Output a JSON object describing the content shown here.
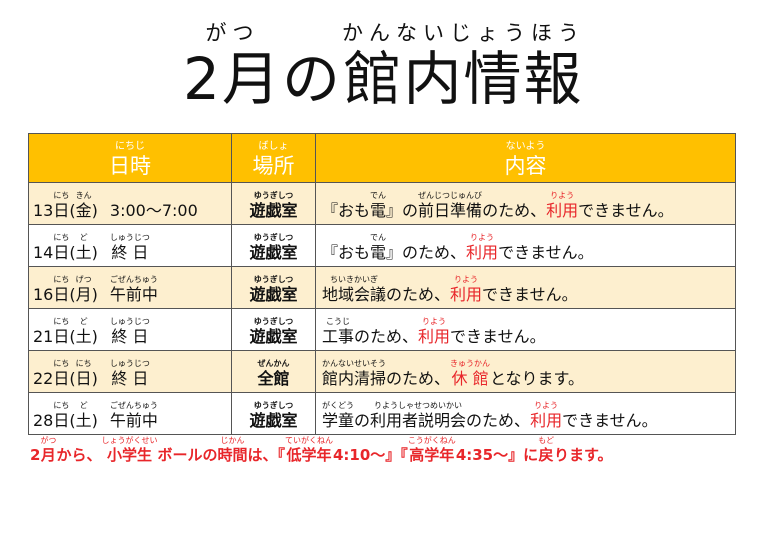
{
  "title": [
    {
      "t": "2月",
      "r": "がつ"
    },
    {
      "t": "の"
    },
    {
      "t": "館内情報",
      "r": "かんないじょうほう"
    }
  ],
  "header": {
    "date": [
      {
        "t": "日時",
        "r": "にちじ"
      }
    ],
    "place": [
      {
        "t": "場所",
        "r": "ばしょ"
      }
    ],
    "content": [
      {
        "t": "内容",
        "r": "ないよう"
      }
    ]
  },
  "rows": [
    {
      "date": [
        {
          "t": "13"
        },
        {
          "t": "日",
          "r": "にち"
        },
        {
          "t": "("
        },
        {
          "t": "金",
          "r": "きん"
        },
        {
          "t": ")"
        }
      ],
      "time": [
        {
          "t": "3:00～7:00"
        }
      ],
      "place": [
        {
          "t": "遊戯室",
          "r": "ゆうぎしつ"
        }
      ],
      "content": [
        {
          "t": "『おも"
        },
        {
          "t": "電",
          "r": "でん"
        },
        {
          "t": "』の"
        },
        {
          "t": "前日準備",
          "r": "ぜんじつじゅんび"
        },
        {
          "t": "のため、"
        },
        {
          "t": "利用",
          "r": "りよう",
          "red": true
        },
        {
          "t": "できません。"
        }
      ]
    },
    {
      "date": [
        {
          "t": "14"
        },
        {
          "t": "日",
          "r": "にち"
        },
        {
          "t": "("
        },
        {
          "t": "土",
          "r": "ど"
        },
        {
          "t": ")"
        }
      ],
      "time": [
        {
          "t": "終 日",
          "r": "しゅうじつ"
        }
      ],
      "place": [
        {
          "t": "遊戯室",
          "r": "ゆうぎしつ"
        }
      ],
      "content": [
        {
          "t": "『おも"
        },
        {
          "t": "電",
          "r": "でん"
        },
        {
          "t": "』のため、"
        },
        {
          "t": "利用",
          "r": "りよう",
          "red": true
        },
        {
          "t": "できません。"
        }
      ]
    },
    {
      "date": [
        {
          "t": "16"
        },
        {
          "t": "日",
          "r": "にち"
        },
        {
          "t": "("
        },
        {
          "t": "月",
          "r": "げつ"
        },
        {
          "t": ")"
        }
      ],
      "time": [
        {
          "t": "午前中",
          "r": "ごぜんちゅう"
        }
      ],
      "place": [
        {
          "t": "遊戯室",
          "r": "ゆうぎしつ"
        }
      ],
      "content": [
        {
          "t": "地域会議",
          "r": "ちいきかいぎ"
        },
        {
          "t": "のため、"
        },
        {
          "t": "利用",
          "r": "りよう",
          "red": true
        },
        {
          "t": "できません。"
        }
      ]
    },
    {
      "date": [
        {
          "t": "21"
        },
        {
          "t": "日",
          "r": "にち"
        },
        {
          "t": "("
        },
        {
          "t": "土",
          "r": "ど"
        },
        {
          "t": ")"
        }
      ],
      "time": [
        {
          "t": "終 日",
          "r": "しゅうじつ"
        }
      ],
      "place": [
        {
          "t": "遊戯室",
          "r": "ゆうぎしつ"
        }
      ],
      "content": [
        {
          "t": "工事",
          "r": "こうじ"
        },
        {
          "t": "のため、"
        },
        {
          "t": "利用",
          "r": "りよう",
          "red": true
        },
        {
          "t": "できません。"
        }
      ]
    },
    {
      "date": [
        {
          "t": "22"
        },
        {
          "t": "日",
          "r": "にち"
        },
        {
          "t": "("
        },
        {
          "t": "日",
          "r": "にち"
        },
        {
          "t": ")"
        }
      ],
      "time": [
        {
          "t": "終 日",
          "r": "しゅうじつ"
        }
      ],
      "place": [
        {
          "t": "全館",
          "r": "ぜんかん"
        }
      ],
      "content": [
        {
          "t": "館内清掃",
          "r": "かんないせいそう"
        },
        {
          "t": "のため、"
        },
        {
          "t": "休 館",
          "r": "きゅうかん",
          "red": true
        },
        {
          "t": "となります。"
        }
      ]
    },
    {
      "date": [
        {
          "t": "28"
        },
        {
          "t": "日",
          "r": "にち"
        },
        {
          "t": "("
        },
        {
          "t": "土",
          "r": "ど"
        },
        {
          "t": ")"
        }
      ],
      "time": [
        {
          "t": "午前中",
          "r": "ごぜんちゅう"
        }
      ],
      "place": [
        {
          "t": "遊戯室",
          "r": "ゆうぎしつ"
        }
      ],
      "content": [
        {
          "t": "学童",
          "r": "がくどう"
        },
        {
          "t": "の"
        },
        {
          "t": "利用者説明会",
          "r": "りようしゃせつめいかい"
        },
        {
          "t": "のため、"
        },
        {
          "t": "利用",
          "r": "りよう",
          "red": true
        },
        {
          "t": "できません。"
        }
      ]
    }
  ],
  "note": [
    {
      "t": "2"
    },
    {
      "t": "月",
      "r": "がつ"
    },
    {
      "t": "から、"
    },
    {
      "t": "小学生",
      "r": "しょうがくせい"
    },
    {
      "t": "ボールの"
    },
    {
      "t": "時間",
      "r": "じかん"
    },
    {
      "t": "は、『"
    },
    {
      "t": "低学年",
      "r": "ていがくねん"
    },
    {
      "t": "4:10～』『"
    },
    {
      "t": "高学年",
      "r": "こうがくねん"
    },
    {
      "t": "4:35～』に"
    },
    {
      "t": "戻",
      "r": "もど"
    },
    {
      "t": "ります。"
    }
  ],
  "colors": {
    "header_bg": "#ffc000",
    "row_alt_bg": "#fdefcf",
    "accent_red": "#e8262a"
  }
}
